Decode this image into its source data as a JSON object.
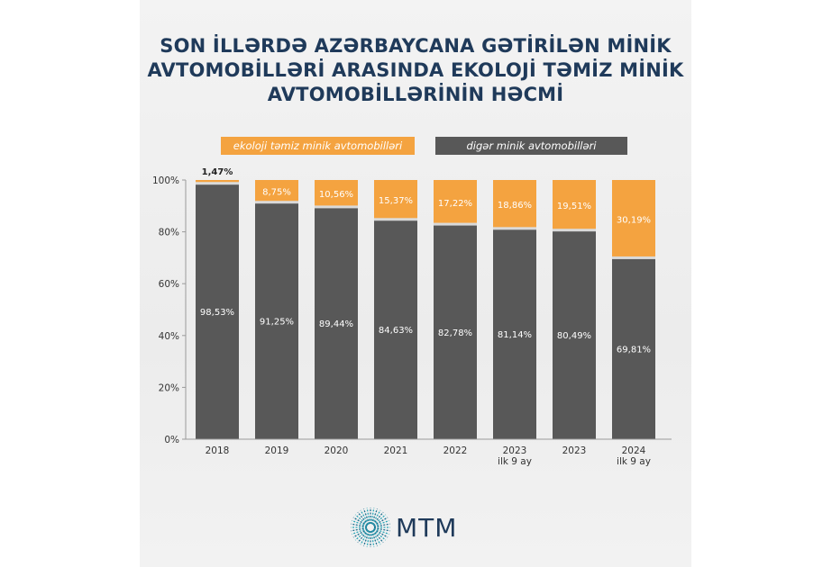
{
  "title_lines": [
    "SON İLLƏRDƏ AZƏRBAYCANA GƏTİRİLƏN MİNİK",
    "AVTOMOBİLLƏRİ ARASINDA EKOLOJİ TƏMİZ MİNİK",
    "AVTOMOBİLLƏRİNİN HƏCMİ"
  ],
  "logo": {
    "text": "MTM",
    "icon": "radial-lines-logo-icon"
  },
  "colors": {
    "eco": "#f4a340",
    "other": "#585858",
    "title": "#1f3a5a"
  },
  "chart_data": {
    "type": "bar",
    "stacked": true,
    "legend_position": "top",
    "grid": false,
    "ylim": [
      0,
      100
    ],
    "yticks": [
      "0%",
      "20%",
      "40%",
      "60%",
      "80%",
      "100%"
    ],
    "categories": [
      [
        "2018"
      ],
      [
        "2019"
      ],
      [
        "2020"
      ],
      [
        "2021"
      ],
      [
        "2022"
      ],
      [
        "2023",
        "ilk 9 ay"
      ],
      [
        "2023"
      ],
      [
        "2024",
        "ilk 9 ay"
      ]
    ],
    "series": [
      {
        "name": "digər minik avtomobilləri",
        "values": [
          98.53,
          91.25,
          89.44,
          84.63,
          82.78,
          81.14,
          80.49,
          69.81
        ],
        "labels": [
          "98,53%",
          "91,25%",
          "89,44%",
          "84,63%",
          "82,78%",
          "81,14%",
          "80,49%",
          "69,81%"
        ]
      },
      {
        "name": "ekoloji təmiz minik avtomobilləri",
        "values": [
          1.47,
          8.75,
          10.56,
          15.37,
          17.22,
          18.86,
          19.51,
          30.19
        ],
        "labels": [
          "1,47%",
          "8,75%",
          "10,56%",
          "15,37%",
          "17,22%",
          "18,86%",
          "19,51%",
          "30,19%"
        ]
      }
    ]
  }
}
